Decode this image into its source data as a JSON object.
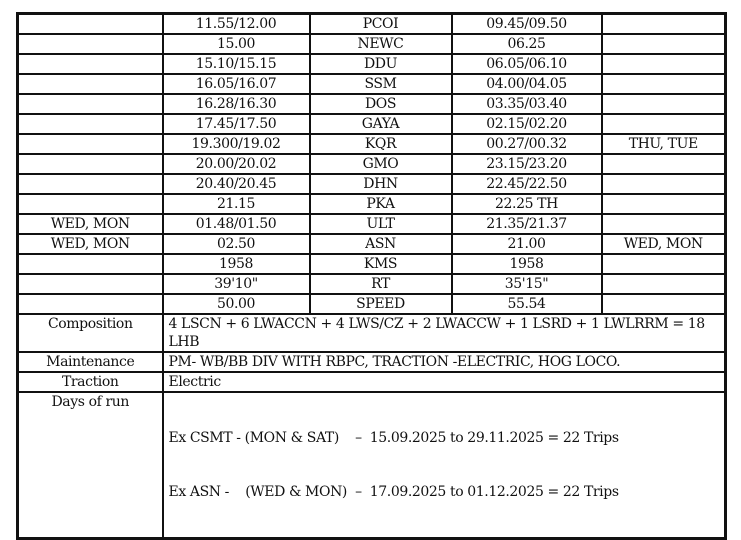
{
  "schedule_rows": [
    {
      "days_left": "",
      "time_left": "11.55/12.00",
      "station": "PCOI",
      "time_right": "09.45/09.50",
      "days_right": ""
    },
    {
      "days_left": "",
      "time_left": "15.00",
      "station": "NEWC",
      "time_right": "06.25",
      "days_right": ""
    },
    {
      "days_left": "",
      "time_left": "15.10/15.15",
      "station": "DDU",
      "time_right": "06.05/06.10",
      "days_right": ""
    },
    {
      "days_left": "",
      "time_left": "16.05/16.07",
      "station": "SSM",
      "time_right": "04.00/04.05",
      "days_right": ""
    },
    {
      "days_left": "",
      "time_left": "16.28/16.30",
      "station": "DOS",
      "time_right": "03.35/03.40",
      "days_right": ""
    },
    {
      "days_left": "",
      "time_left": "17.45/17.50",
      "station": "GAYA",
      "time_right": "02.15/02.20",
      "days_right": ""
    },
    {
      "days_left": "",
      "time_left": "19.300/19.02",
      "station": "KQR",
      "time_right": "00.27/00.32",
      "days_right": "THU, TUE"
    },
    {
      "days_left": "",
      "time_left": "20.00/20.02",
      "station": "GMO",
      "time_right": "23.15/23.20",
      "days_right": ""
    },
    {
      "days_left": "",
      "time_left": "20.40/20.45",
      "station": "DHN",
      "time_right": "22.45/22.50",
      "days_right": ""
    },
    {
      "days_left": "",
      "time_left": "21.15",
      "station": "PKA",
      "time_right": "22.25 TH",
      "days_right": ""
    },
    {
      "days_left": "WED, MON",
      "time_left": "01.48/01.50",
      "station": "ULT",
      "time_right": "21.35/21.37",
      "days_right": ""
    },
    {
      "days_left": "WED, MON",
      "time_left": "02.50",
      "station": "ASN",
      "time_right": "21.00",
      "days_right": "WED, MON"
    },
    {
      "days_left": "",
      "time_left": "1958",
      "station": "KMS",
      "time_right": "1958",
      "days_right": ""
    },
    {
      "days_left": "",
      "time_left": "39'10\"",
      "station": "RT",
      "time_right": "35'15\"",
      "days_right": ""
    },
    {
      "days_left": "",
      "time_left": "50.00",
      "station": "SPEED",
      "time_right": "55.54",
      "days_right": ""
    }
  ],
  "info": {
    "composition": {
      "label": "Composition",
      "value": "4 LSCN + 6 LWACCN + 4 LWS/CZ + 2 LWACCW + 1 LSRD + 1 LWLRRM = 18 LHB"
    },
    "maintenance": {
      "label": "Maintenance",
      "value": "PM- WB/BB DIV WITH RBPC, TRACTION -ELECTRIC, HOG LOCO."
    },
    "traction": {
      "label": "Traction",
      "value": "Electric"
    },
    "days_of_run": {
      "label": "Days of run",
      "line1": "Ex CSMT - (MON & SAT)    –  15.09.2025 to 29.11.2025 = 22 Trips",
      "line2": "Ex ASN -    (WED & MON)  –  17.09.2025 to 01.12.2025 = 22 Trips"
    }
  }
}
